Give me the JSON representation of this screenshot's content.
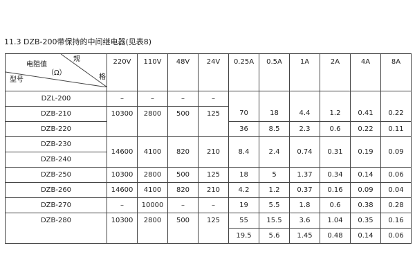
{
  "title": "11.3 DZB-200带保持的中间继电器(见表8)",
  "corner": {
    "top_right_1": "规",
    "top_right_2": "格",
    "middle": "电阻值",
    "unit": "（Ω）",
    "bottom_left": "型号"
  },
  "columns": [
    "220V",
    "110V",
    "48V",
    "24V",
    "0.25A",
    "0.5A",
    "1A",
    "2A",
    "4A",
    "8A"
  ],
  "rows": {
    "r0": {
      "model": "DZL-200",
      "v": [
        "–",
        "–",
        "–",
        "–"
      ]
    },
    "r1": {
      "model": "DZB-210",
      "v": [
        "10300",
        "2800",
        "500",
        "125"
      ],
      "a": [
        "70",
        "18",
        "4.4",
        "1.2",
        "0.41",
        "0.22"
      ]
    },
    "r2": {
      "model": "DZB-220",
      "a": [
        "36",
        "8.5",
        "2.3",
        "0.6",
        "0.22",
        "0.11"
      ]
    },
    "r3": {
      "model": "DZB-230",
      "v": [
        "14600",
        "4100",
        "820",
        "210"
      ],
      "a": [
        "8.4",
        "2.4",
        "0.74",
        "0.31",
        "0.19",
        "0.09"
      ]
    },
    "r4": {
      "model": "DZB-240"
    },
    "r5": {
      "model": "DZB-250",
      "v": [
        "10300",
        "2800",
        "500",
        "125"
      ],
      "a": [
        "18",
        "5",
        "1.37",
        "0.34",
        "0.14",
        "0.06"
      ]
    },
    "r6": {
      "model": "DZB-260",
      "v": [
        "14600",
        "4100",
        "820",
        "210"
      ],
      "a": [
        "4.2",
        "1.2",
        "0.37",
        "0.16",
        "0.09",
        "0.04"
      ]
    },
    "r7": {
      "model": "DZB-270",
      "v": [
        "–",
        "10000",
        "–",
        "–"
      ],
      "a": [
        "19",
        "5.5",
        "1.8",
        "0.6",
        "0.38",
        "0.28"
      ]
    },
    "r8": {
      "model": "DZB-280",
      "v": [
        "10300",
        "2800",
        "500",
        "125"
      ],
      "a": [
        "55",
        "15.5",
        "3.6",
        "1.04",
        "0.35",
        "0.16"
      ]
    },
    "r9": {
      "a": [
        "19.5",
        "5.6",
        "1.45",
        "0.48",
        "0.14",
        "0.06"
      ]
    }
  }
}
